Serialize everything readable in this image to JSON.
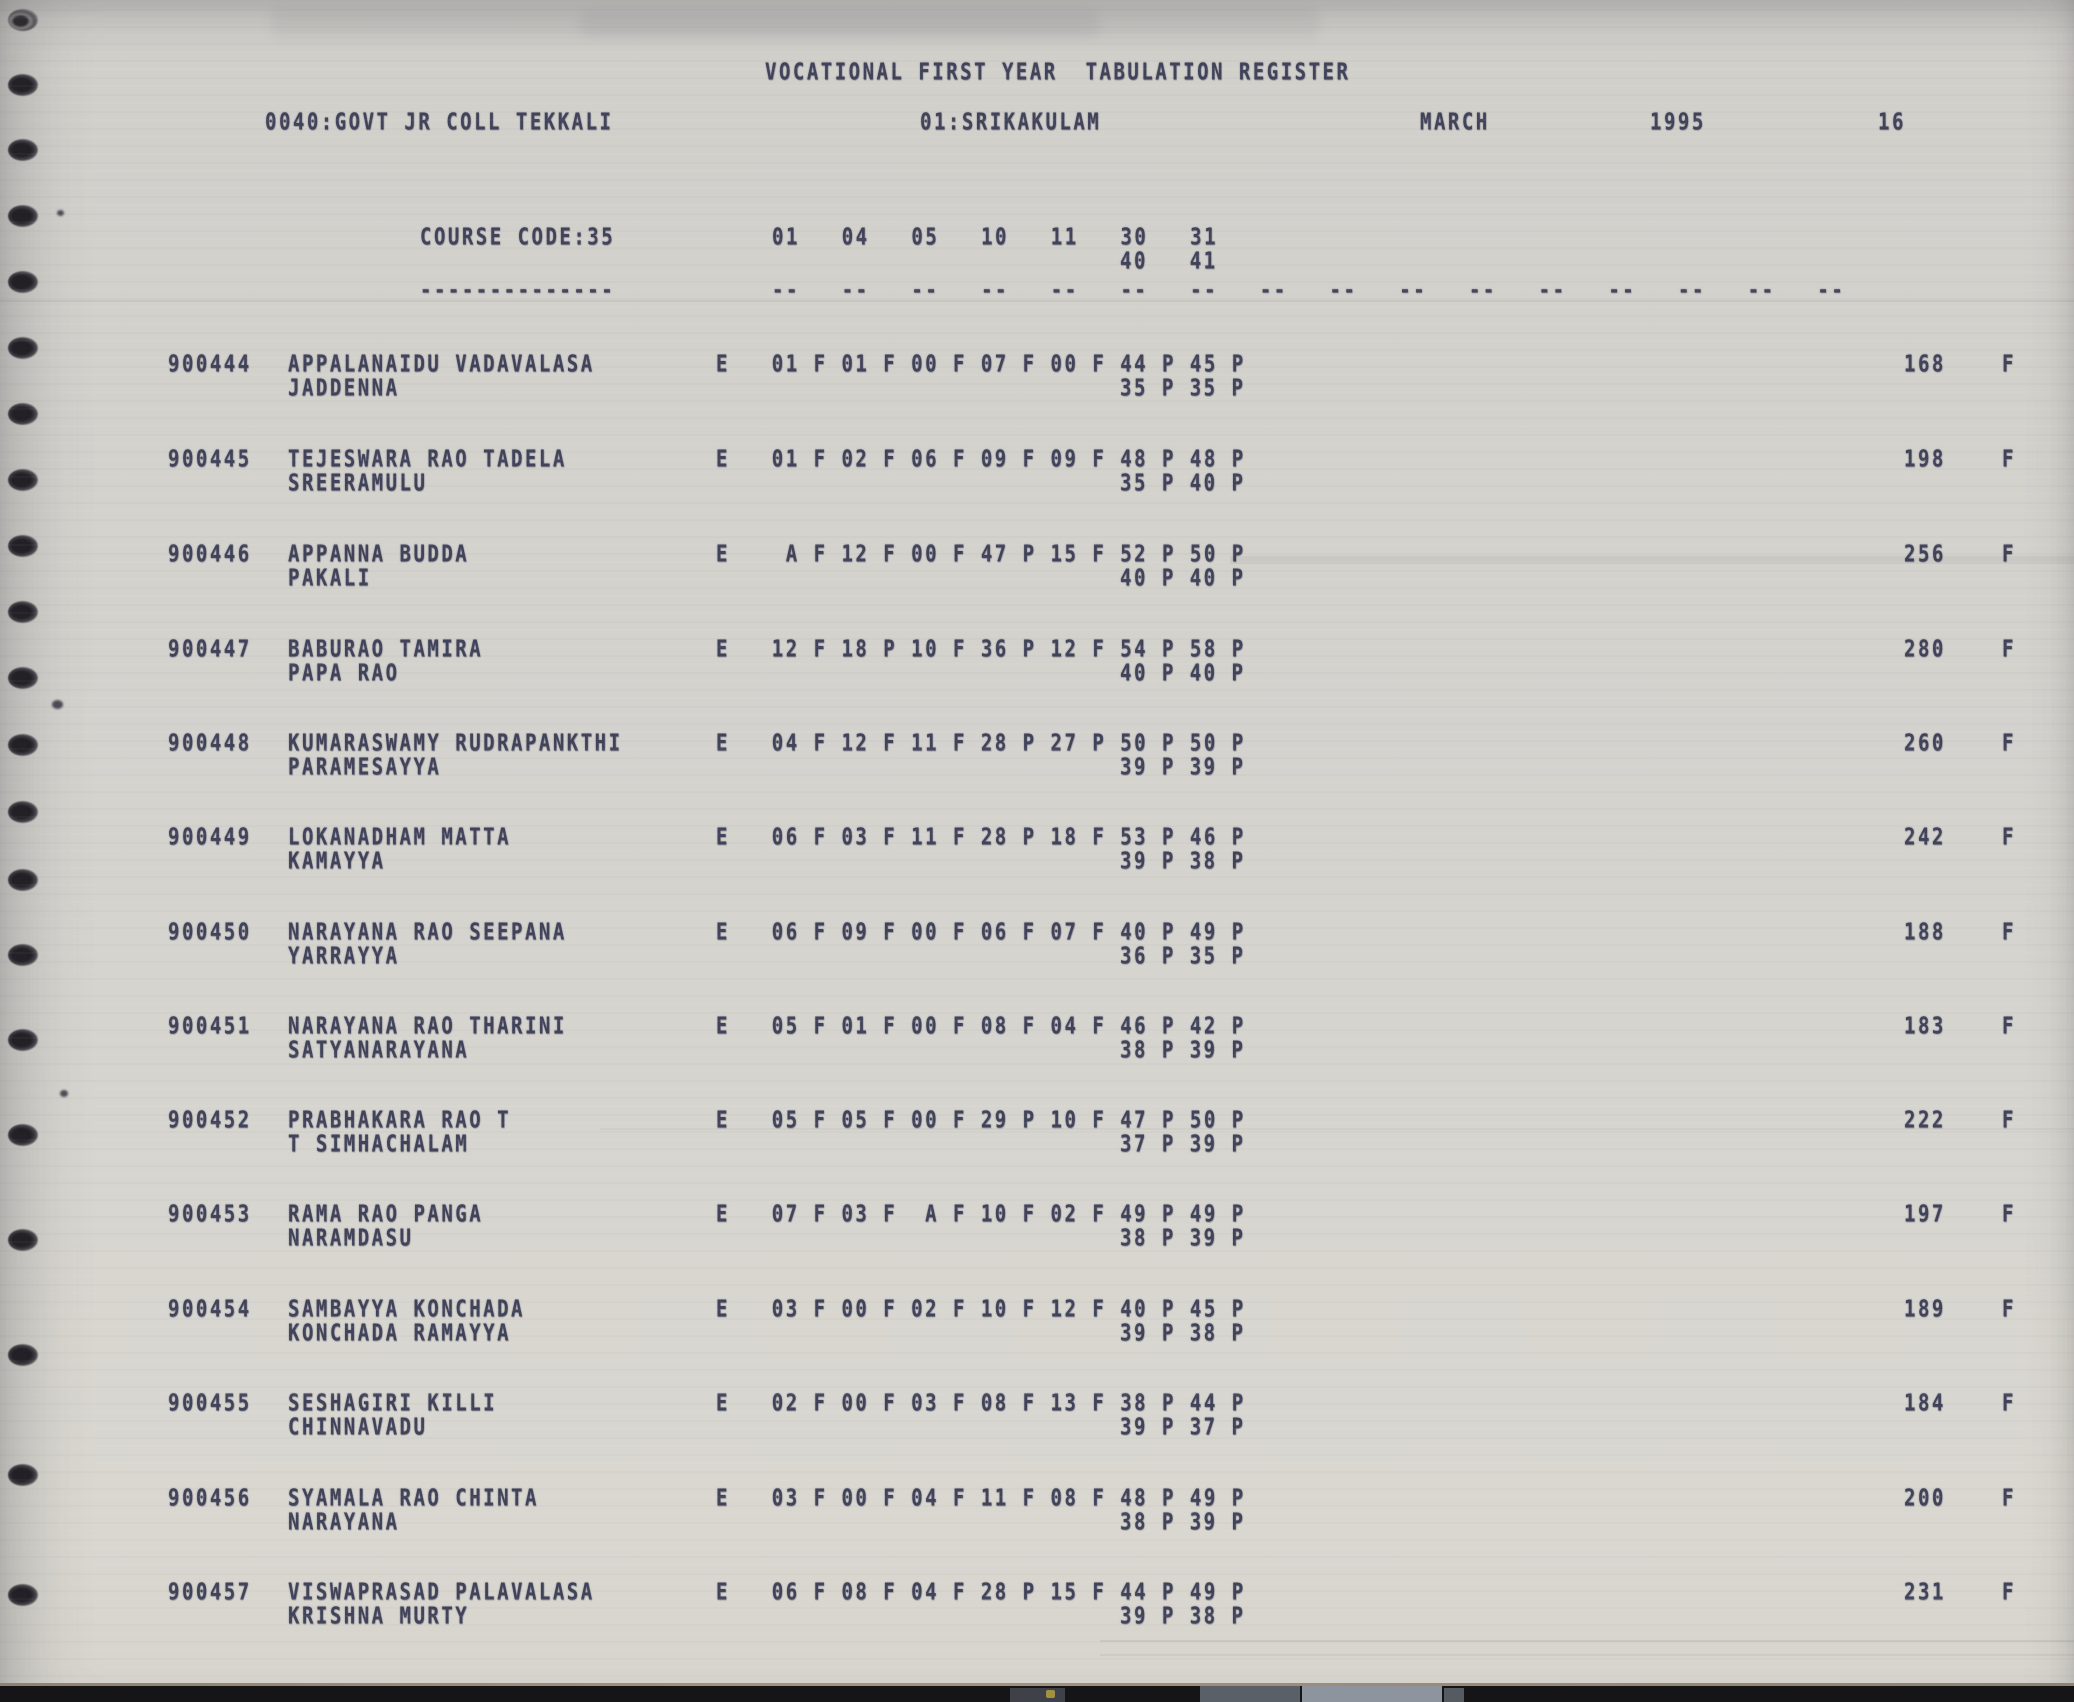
{
  "header": {
    "title": "VOCATIONAL FIRST YEAR  TABULATION REGISTER",
    "college": "0040:GOVT JR COLL TEKKALI",
    "district": "01:SRIKAKULAM",
    "month": "MARCH",
    "year": "1995",
    "page_number": "16"
  },
  "table": {
    "course_code_label": "COURSE CODE:35",
    "course_code_underline": "--------------",
    "subject_codes_row1": [
      "01",
      "04",
      "05",
      "10",
      "11",
      "30",
      "31"
    ],
    "subject_codes_row2": [
      "40",
      "41"
    ],
    "column_underline": "--   --   --   --   --   --   --   --   --   --   --   --   --   --   --   --",
    "rows": [
      {
        "roll": "900444",
        "name_line1": "APPALANAIDU VADAVALASA",
        "name_line2": "JADDENNA",
        "medium": "E",
        "marks_row1": [
          "01 F",
          "01 F",
          "00 F",
          "07 F",
          "00 F",
          "44 P",
          "45 P"
        ],
        "marks_row2": [
          "35 P",
          "35 P"
        ],
        "total": "168",
        "result": "F"
      },
      {
        "roll": "900445",
        "name_line1": "TEJESWARA RAO TADELA",
        "name_line2": "SREERAMULU",
        "medium": "E",
        "marks_row1": [
          "01 F",
          "02 F",
          "06 F",
          "09 F",
          "09 F",
          "48 P",
          "48 P"
        ],
        "marks_row2": [
          "35 P",
          "40 P"
        ],
        "total": "198",
        "result": "F"
      },
      {
        "roll": "900446",
        "name_line1": "APPANNA BUDDA",
        "name_line2": "PAKALI",
        "medium": "E",
        "marks_row1": [
          " A F",
          "12 F",
          "00 F",
          "47 P",
          "15 F",
          "52 P",
          "50 P"
        ],
        "marks_row2": [
          "40 P",
          "40 P"
        ],
        "total": "256",
        "result": "F"
      },
      {
        "roll": "900447",
        "name_line1": "BABURAO TAMIRA",
        "name_line2": "PAPA RAO",
        "medium": "E",
        "marks_row1": [
          "12 F",
          "18 P",
          "10 F",
          "36 P",
          "12 F",
          "54 P",
          "58 P"
        ],
        "marks_row2": [
          "40 P",
          "40 P"
        ],
        "total": "280",
        "result": "F"
      },
      {
        "roll": "900448",
        "name_line1": "KUMARASWAMY RUDRAPANKTHI",
        "name_line2": "PARAMESAYYA",
        "medium": "E",
        "marks_row1": [
          "04 F",
          "12 F",
          "11 F",
          "28 P",
          "27 P",
          "50 P",
          "50 P"
        ],
        "marks_row2": [
          "39 P",
          "39 P"
        ],
        "total": "260",
        "result": "F"
      },
      {
        "roll": "900449",
        "name_line1": "LOKANADHAM MATTA",
        "name_line2": "KAMAYYA",
        "medium": "E",
        "marks_row1": [
          "06 F",
          "03 F",
          "11 F",
          "28 P",
          "18 F",
          "53 P",
          "46 P"
        ],
        "marks_row2": [
          "39 P",
          "38 P"
        ],
        "total": "242",
        "result": "F"
      },
      {
        "roll": "900450",
        "name_line1": "NARAYANA RAO SEEPANA",
        "name_line2": "YARRAYYA",
        "medium": "E",
        "marks_row1": [
          "06 F",
          "09 F",
          "00 F",
          "06 F",
          "07 F",
          "40 P",
          "49 P"
        ],
        "marks_row2": [
          "36 P",
          "35 P"
        ],
        "total": "188",
        "result": "F"
      },
      {
        "roll": "900451",
        "name_line1": "NARAYANA RAO THARINI",
        "name_line2": "SATYANARAYANA",
        "medium": "E",
        "marks_row1": [
          "05 F",
          "01 F",
          "00 F",
          "08 F",
          "04 F",
          "46 P",
          "42 P"
        ],
        "marks_row2": [
          "38 P",
          "39 P"
        ],
        "total": "183",
        "result": "F"
      },
      {
        "roll": "900452",
        "name_line1": "PRABHAKARA RAO T",
        "name_line2": "T SIMHACHALAM",
        "medium": "E",
        "marks_row1": [
          "05 F",
          "05 F",
          "00 F",
          "29 P",
          "10 F",
          "47 P",
          "50 P"
        ],
        "marks_row2": [
          "37 P",
          "39 P"
        ],
        "total": "222",
        "result": "F"
      },
      {
        "roll": "900453",
        "name_line1": "RAMA RAO PANGA",
        "name_line2": "NARAMDASU",
        "medium": "E",
        "marks_row1": [
          "07 F",
          "03 F",
          " A F",
          "10 F",
          "02 F",
          "49 P",
          "49 P"
        ],
        "marks_row2": [
          "38 P",
          "39 P"
        ],
        "total": "197",
        "result": "F"
      },
      {
        "roll": "900454",
        "name_line1": "SAMBAYYA KONCHADA",
        "name_line2": "KONCHADA RAMAYYA",
        "medium": "E",
        "marks_row1": [
          "03 F",
          "00 F",
          "02 F",
          "10 F",
          "12 F",
          "40 P",
          "45 P"
        ],
        "marks_row2": [
          "39 P",
          "38 P"
        ],
        "total": "189",
        "result": "F"
      },
      {
        "roll": "900455",
        "name_line1": "SESHAGIRI KILLI",
        "name_line2": "CHINNAVADU",
        "medium": "E",
        "marks_row1": [
          "02 F",
          "00 F",
          "03 F",
          "08 F",
          "13 F",
          "38 P",
          "44 P"
        ],
        "marks_row2": [
          "39 P",
          "37 P"
        ],
        "total": "184",
        "result": "F"
      },
      {
        "roll": "900456",
        "name_line1": "SYAMALA RAO CHINTA",
        "name_line2": "NARAYANA",
        "medium": "E",
        "marks_row1": [
          "03 F",
          "00 F",
          "04 F",
          "11 F",
          "08 F",
          "48 P",
          "49 P"
        ],
        "marks_row2": [
          "38 P",
          "39 P"
        ],
        "total": "200",
        "result": "F"
      },
      {
        "roll": "900457",
        "name_line1": "VISWAPRASAD PALAVALASA",
        "name_line2": "KRISHNA MURTY",
        "medium": "E",
        "marks_row1": [
          "06 F",
          "08 F",
          "04 F",
          "28 P",
          "15 F",
          "44 P",
          "49 P"
        ],
        "marks_row2": [
          "39 P",
          "38 P"
        ],
        "total": "231",
        "result": "F"
      }
    ]
  },
  "colors": {
    "paper": "#d5d3ce",
    "ink": "#41435a",
    "scan_band": "#151518"
  }
}
